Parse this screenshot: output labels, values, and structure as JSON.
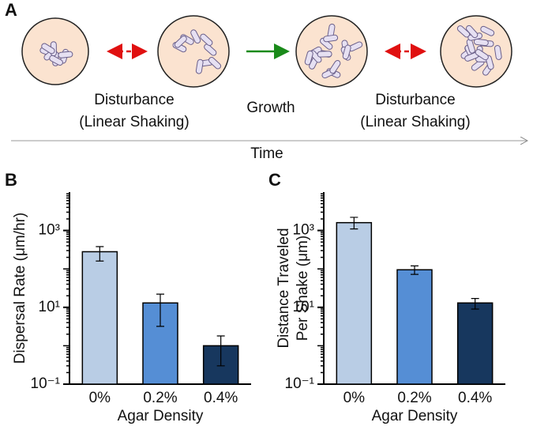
{
  "diagram": {
    "panel_label": "A",
    "labels": [
      [
        "Disturbance",
        "(Linear Shaking)"
      ],
      [
        "Growth"
      ],
      [
        "Disturbance",
        "(Linear Shaking)"
      ]
    ],
    "timeline": "Time"
  },
  "chart_data": [
    {
      "type": "bar",
      "panel_label": "B",
      "ylabel": [
        "Dispersal Rate (μm/hr)"
      ],
      "xlabel": "Agar Density",
      "categories": [
        "0%",
        "0.2%",
        "0.4%"
      ],
      "values": [
        280,
        13,
        1.0
      ],
      "error_low": [
        160,
        3.2,
        0.3
      ],
      "error_high": [
        380,
        22,
        1.8
      ],
      "colors": [
        "#b9cde5",
        "#558ed5",
        "#17375e"
      ],
      "log_y": true,
      "ylim": [
        0.1,
        10000
      ],
      "yticks": [
        {
          "value": 0.1,
          "label": "10⁻¹"
        },
        {
          "value": 10,
          "label": "10¹"
        },
        {
          "value": 1000,
          "label": "10³"
        }
      ]
    },
    {
      "type": "bar",
      "panel_label": "C",
      "ylabel": [
        "Distance Traveled",
        "Per Shake (μm)"
      ],
      "xlabel": "Agar Density",
      "categories": [
        "0%",
        "0.2%",
        "0.4%"
      ],
      "values": [
        1600,
        95,
        13
      ],
      "error_low": [
        1100,
        72,
        9
      ],
      "error_high": [
        2200,
        120,
        17
      ],
      "colors": [
        "#b9cde5",
        "#558ed5",
        "#17375e"
      ],
      "log_y": true,
      "ylim": [
        0.1,
        10000
      ],
      "yticks": [
        {
          "value": 0.1,
          "label": "10⁻¹"
        },
        {
          "value": 10,
          "label": "10¹"
        },
        {
          "value": 1000,
          "label": "10³"
        }
      ]
    }
  ]
}
